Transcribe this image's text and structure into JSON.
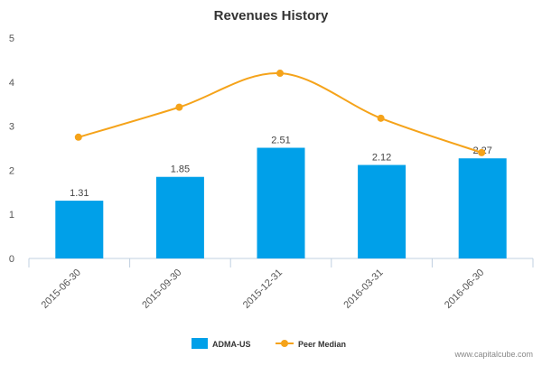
{
  "chart_data": {
    "type": "bar",
    "title": "Revenues History",
    "categories": [
      "2015-06-30",
      "2015-09-30",
      "2015-12-31",
      "2016-03-31",
      "2016-06-30"
    ],
    "series": [
      {
        "name": "ADMA-US",
        "type": "bar",
        "color": "#00a0e9",
        "values": [
          1.31,
          1.85,
          2.51,
          2.12,
          2.27
        ],
        "labels": [
          "1.31",
          "1.85",
          "2.51",
          "2.12",
          "2.27"
        ]
      },
      {
        "name": "Peer Median",
        "type": "line",
        "smooth": true,
        "color": "#f5a31a",
        "values": [
          2.75,
          3.43,
          4.2,
          3.18,
          2.4
        ]
      }
    ],
    "yticks": [
      "0",
      "1",
      "2",
      "3",
      "4",
      "5"
    ],
    "ylim": [
      0,
      5
    ],
    "grid": false,
    "legend_position": "bottom-center"
  },
  "watermark": "www.capitalcube.com"
}
